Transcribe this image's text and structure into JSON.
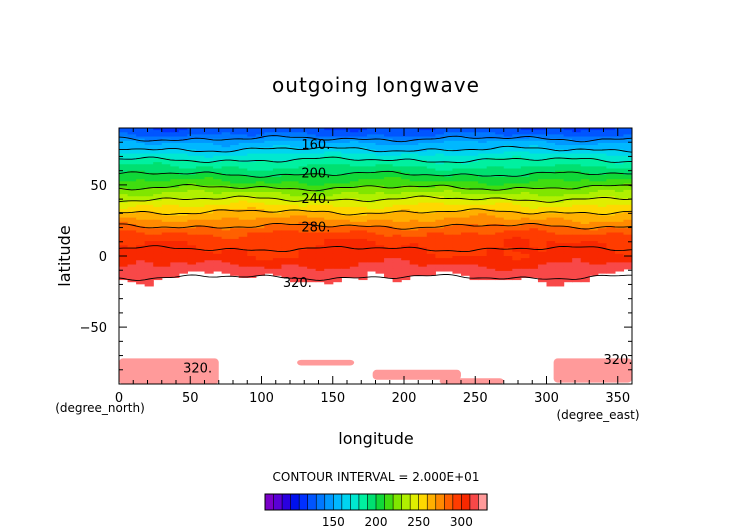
{
  "chart_data": {
    "type": "heatmap",
    "title": "outgoing longwave",
    "xlabel": "longitude",
    "ylabel": "latitude",
    "x_unit": "(degree_east)",
    "y_unit": "(degree_north)",
    "xlim": [
      0,
      360
    ],
    "ylim": [
      -90,
      90
    ],
    "xticks": [
      0,
      50,
      100,
      150,
      200,
      250,
      300,
      350
    ],
    "yticks": [
      -50,
      0,
      50
    ],
    "contour_interval_text": "CONTOUR INTERVAL = 2.000E+01",
    "contour_labels": [
      {
        "text": "160.",
        "lon": 128,
        "lat": 78
      },
      {
        "text": "200.",
        "lon": 128,
        "lat": 58
      },
      {
        "text": "240.",
        "lon": 128,
        "lat": 40
      },
      {
        "text": "280.",
        "lon": 128,
        "lat": 20
      },
      {
        "text": "320.",
        "lon": 115,
        "lat": -19
      },
      {
        "text": "320.",
        "lon": 45,
        "lat": -79
      },
      {
        "text": "320.",
        "lon": 340,
        "lat": -73
      }
    ],
    "lat_profile": [
      {
        "lat": 90,
        "value": 120
      },
      {
        "lat": 85,
        "value": 130
      },
      {
        "lat": 80,
        "value": 150
      },
      {
        "lat": 75,
        "value": 160
      },
      {
        "lat": 70,
        "value": 175
      },
      {
        "lat": 65,
        "value": 185
      },
      {
        "lat": 60,
        "value": 195
      },
      {
        "lat": 55,
        "value": 205
      },
      {
        "lat": 50,
        "value": 215
      },
      {
        "lat": 45,
        "value": 228
      },
      {
        "lat": 40,
        "value": 240
      },
      {
        "lat": 35,
        "value": 252
      },
      {
        "lat": 30,
        "value": 262
      },
      {
        "lat": 25,
        "value": 272
      },
      {
        "lat": 20,
        "value": 282
      },
      {
        "lat": 15,
        "value": 292
      },
      {
        "lat": 10,
        "value": 298
      },
      {
        "lat": 5,
        "value": 300
      },
      {
        "lat": 0,
        "value": 302
      },
      {
        "lat": -5,
        "value": 308
      },
      {
        "lat": -10,
        "value": 315
      },
      {
        "lat": -15,
        "value": 320
      },
      {
        "lat": -25,
        "value": 330
      },
      {
        "lat": -90,
        "value": 330
      }
    ],
    "colorbar": {
      "ticks": [
        150,
        200,
        250,
        300
      ],
      "levels": [
        70,
        80,
        90,
        100,
        110,
        120,
        130,
        140,
        150,
        160,
        170,
        180,
        190,
        200,
        210,
        220,
        230,
        240,
        250,
        260,
        270,
        280,
        290,
        300,
        310,
        320,
        330
      ],
      "colors": [
        "#7a00c8",
        "#5a00d6",
        "#2a00e0",
        "#0010ee",
        "#0030ff",
        "#0055ff",
        "#0078ff",
        "#0098ff",
        "#00b8ff",
        "#00d4f0",
        "#00e8d0",
        "#00f0a0",
        "#00e070",
        "#10d838",
        "#40dc10",
        "#80e600",
        "#b0f000",
        "#e0ee00",
        "#ffd800",
        "#ffb000",
        "#ff8a00",
        "#ff6000",
        "#ff3c00",
        "#f82800",
        "#f84848",
        "#ff9a9a"
      ]
    }
  }
}
